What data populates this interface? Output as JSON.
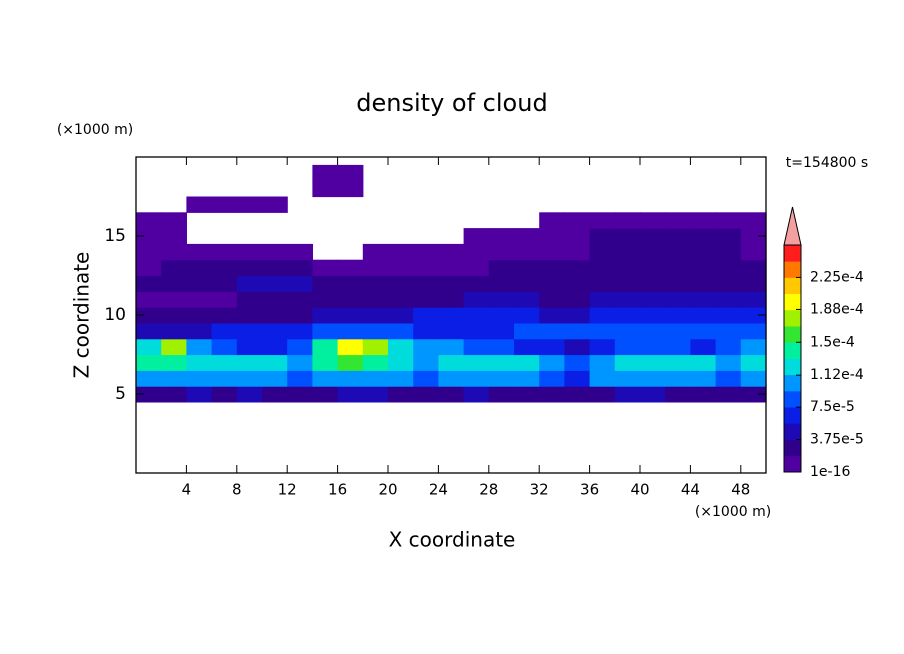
{
  "chart_data": {
    "type": "contour",
    "title": "density of cloud",
    "x_label": "X coordinate",
    "y_label": "Z coordinate",
    "x_unit": "(×1000 m)",
    "y_unit": "(×1000 m)",
    "time_label": "t=154800 s",
    "xlim": [
      0,
      50
    ],
    "ylim": [
      0,
      20
    ],
    "xticks": [
      4,
      8,
      12,
      16,
      20,
      24,
      28,
      32,
      36,
      40,
      44,
      48
    ],
    "yticks": [
      5,
      10,
      15
    ],
    "x": [
      1,
      3,
      5,
      7,
      9,
      11,
      13,
      15,
      17,
      19,
      21,
      23,
      25,
      27,
      29,
      31,
      33,
      35,
      37,
      39,
      41,
      43,
      45,
      47,
      49
    ],
    "y": [
      5,
      6,
      7,
      8,
      9,
      10,
      11,
      12,
      13,
      14,
      15,
      16,
      17,
      18,
      19
    ],
    "values": [
      [
        3e-05,
        3e-05,
        5e-05,
        3e-05,
        5e-05,
        3e-05,
        3e-05,
        3e-05,
        5e-05,
        5e-05,
        3e-05,
        3e-05,
        3e-05,
        5e-05,
        3e-05,
        3e-05,
        3e-05,
        3e-05,
        3e-05,
        5e-05,
        5e-05,
        3e-05,
        3e-05,
        3e-05,
        3e-05
      ],
      [
        0.0001,
        0.0001,
        0.0001,
        0.0001,
        0.0001,
        0.0001,
        8.5e-05,
        0.0001,
        0.0001,
        0.0001,
        0.0001,
        8.5e-05,
        0.0001,
        0.0001,
        0.0001,
        0.0001,
        8.5e-05,
        6.5e-05,
        0.0001,
        0.0001,
        0.0001,
        0.0001,
        0.0001,
        8.5e-05,
        0.0001
      ],
      [
        0.00014,
        0.00014,
        0.00012,
        0.00012,
        0.00012,
        0.00012,
        0.0001,
        0.00014,
        0.00016,
        0.00014,
        0.00012,
        0.0001,
        0.00012,
        0.00012,
        0.00012,
        0.00012,
        0.0001,
        8.5e-05,
        0.0001,
        0.00012,
        0.00012,
        0.00012,
        0.00012,
        0.0001,
        0.00012
      ],
      [
        0.00012,
        0.00018,
        0.0001,
        8.5e-05,
        6.5e-05,
        6.5e-05,
        8.5e-05,
        0.00014,
        0.000195,
        0.00018,
        0.00012,
        0.0001,
        0.0001,
        8.5e-05,
        8.5e-05,
        6.5e-05,
        6.5e-05,
        5e-05,
        6.5e-05,
        8.5e-05,
        8.5e-05,
        8.5e-05,
        6.5e-05,
        8.5e-05,
        0.0001
      ],
      [
        5e-05,
        5e-05,
        5e-05,
        6.5e-05,
        6.5e-05,
        6.5e-05,
        6.5e-05,
        8.5e-05,
        8.5e-05,
        8.5e-05,
        8.5e-05,
        6.5e-05,
        6.5e-05,
        6.5e-05,
        6.5e-05,
        8.5e-05,
        8.5e-05,
        8.5e-05,
        8.5e-05,
        8.5e-05,
        8.5e-05,
        8.5e-05,
        8.5e-05,
        8.5e-05,
        8.5e-05
      ],
      [
        3e-05,
        3e-05,
        3e-05,
        3e-05,
        3e-05,
        3e-05,
        3e-05,
        5e-05,
        5e-05,
        5e-05,
        5e-05,
        6.5e-05,
        6.5e-05,
        6.5e-05,
        6.5e-05,
        6.5e-05,
        5e-05,
        5e-05,
        6.5e-05,
        6.5e-05,
        6.5e-05,
        6.5e-05,
        6.5e-05,
        6.5e-05,
        6.5e-05
      ],
      [
        1e-05,
        1e-05,
        1e-05,
        1e-05,
        3e-05,
        3e-05,
        3e-05,
        3e-05,
        3e-05,
        3e-05,
        3e-05,
        3e-05,
        3e-05,
        5e-05,
        5e-05,
        5e-05,
        3e-05,
        3e-05,
        5e-05,
        5e-05,
        5e-05,
        5e-05,
        5e-05,
        5e-05,
        5e-05
      ],
      [
        3e-05,
        3e-05,
        3e-05,
        3e-05,
        5e-05,
        5e-05,
        5e-05,
        3e-05,
        3e-05,
        3e-05,
        3e-05,
        3e-05,
        3e-05,
        3e-05,
        3e-05,
        3e-05,
        3e-05,
        3e-05,
        3e-05,
        3e-05,
        3e-05,
        3e-05,
        3e-05,
        3e-05,
        3e-05
      ],
      [
        1e-05,
        3e-05,
        3e-05,
        3e-05,
        3e-05,
        3e-05,
        3e-05,
        1e-05,
        1e-05,
        1e-05,
        1e-05,
        1e-05,
        1e-05,
        1e-05,
        3e-05,
        3e-05,
        3e-05,
        3e-05,
        3e-05,
        3e-05,
        3e-05,
        3e-05,
        3e-05,
        3e-05,
        3e-05
      ],
      [
        1e-05,
        1e-05,
        1e-05,
        1e-05,
        1e-05,
        1e-05,
        1e-05,
        0,
        0,
        1e-05,
        1e-05,
        1e-05,
        1e-05,
        1e-05,
        1e-05,
        1e-05,
        1e-05,
        1e-05,
        3e-05,
        3e-05,
        3e-05,
        3e-05,
        3e-05,
        3e-05,
        1e-05
      ],
      [
        1e-05,
        1e-05,
        0,
        0,
        0,
        0,
        0,
        0,
        0,
        0,
        0,
        0,
        0,
        1e-05,
        1e-05,
        1e-05,
        1e-05,
        1e-05,
        3e-05,
        3e-05,
        3e-05,
        3e-05,
        3e-05,
        3e-05,
        1e-05
      ],
      [
        1e-05,
        1e-05,
        0,
        0,
        0,
        0,
        0,
        0,
        0,
        0,
        0,
        0,
        0,
        0,
        0,
        0,
        1e-05,
        1e-05,
        1e-05,
        1e-05,
        1e-05,
        1e-05,
        1e-05,
        1e-05,
        1e-05
      ],
      [
        0,
        0,
        1e-05,
        1e-05,
        1e-05,
        1e-05,
        0,
        0,
        0,
        0,
        0,
        0,
        0,
        0,
        0,
        0,
        0,
        0,
        0,
        0,
        0,
        0,
        0,
        0,
        0
      ],
      [
        0,
        0,
        0,
        0,
        0,
        0,
        0,
        1e-05,
        1e-05,
        0,
        0,
        0,
        0,
        0,
        0,
        0,
        0,
        0,
        0,
        0,
        0,
        0,
        0,
        0,
        0
      ],
      [
        0,
        0,
        0,
        0,
        0,
        0,
        0,
        1e-05,
        1e-05,
        0,
        0,
        0,
        0,
        0,
        0,
        0,
        0,
        0,
        0,
        0,
        0,
        0,
        0,
        0,
        0
      ]
    ],
    "levels": [
      1e-16,
      1.875e-05,
      3.75e-05,
      5.625e-05,
      7.5e-05,
      9.375e-05,
      0.0001125,
      0.00013125,
      0.00015,
      0.00016875,
      0.0001875,
      0.00020625,
      0.000225,
      0.00024375,
      0.0002625
    ],
    "colors": [
      "#5000a0",
      "#30008c",
      "#1e0ab4",
      "#0a1ee6",
      "#0050ff",
      "#0096ff",
      "#00dcdc",
      "#00f0a0",
      "#32e632",
      "#a0f000",
      "#ffff00",
      "#ffc800",
      "#ff7800",
      "#ff1e1e"
    ],
    "colorbar_lim": [
      1e-16,
      0.0002625
    ],
    "colorbar_ticks": [
      1e-16,
      {
        "value": 3.75e-05,
        "label": "3.75e-5"
      },
      {
        "value": 7.5e-05,
        "label": "7.5e-5"
      },
      {
        "value": 0.000112,
        "label": "1.12e-4"
      },
      {
        "value": 0.00015,
        "label": "1.5e-4"
      },
      {
        "value": 0.000188,
        "label": "1.88e-4"
      },
      {
        "value": 0.000225,
        "label": "2.25e-4"
      }
    ]
  }
}
